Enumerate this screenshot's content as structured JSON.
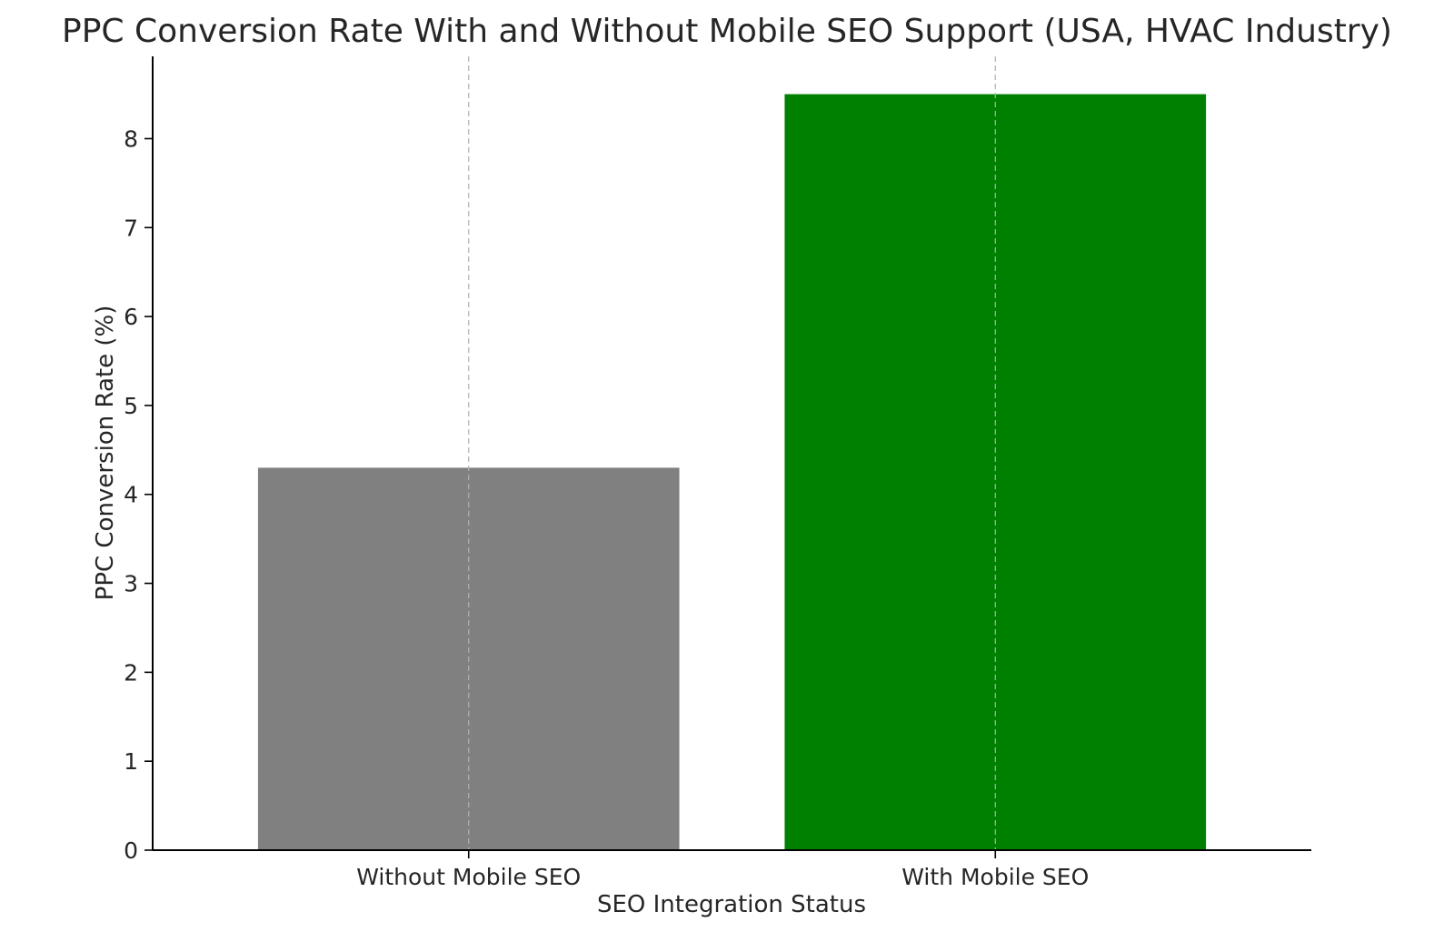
{
  "chart_data": {
    "type": "bar",
    "title": "PPC Conversion Rate With and Without Mobile SEO Support (USA, HVAC Industry)",
    "xlabel": "SEO Integration Status",
    "ylabel": "PPC Conversion Rate (%)",
    "categories": [
      "Without Mobile SEO",
      "With Mobile SEO"
    ],
    "values": [
      4.3,
      8.5
    ],
    "colors": [
      "#808080",
      "#008000"
    ],
    "ylim": [
      0,
      8.925
    ],
    "yticks": [
      0,
      1,
      2,
      3,
      4,
      5,
      6,
      7,
      8
    ],
    "grid": {
      "x": true,
      "y": false,
      "style": "dashed",
      "color": "#b0b0b0"
    },
    "legend": "none"
  }
}
